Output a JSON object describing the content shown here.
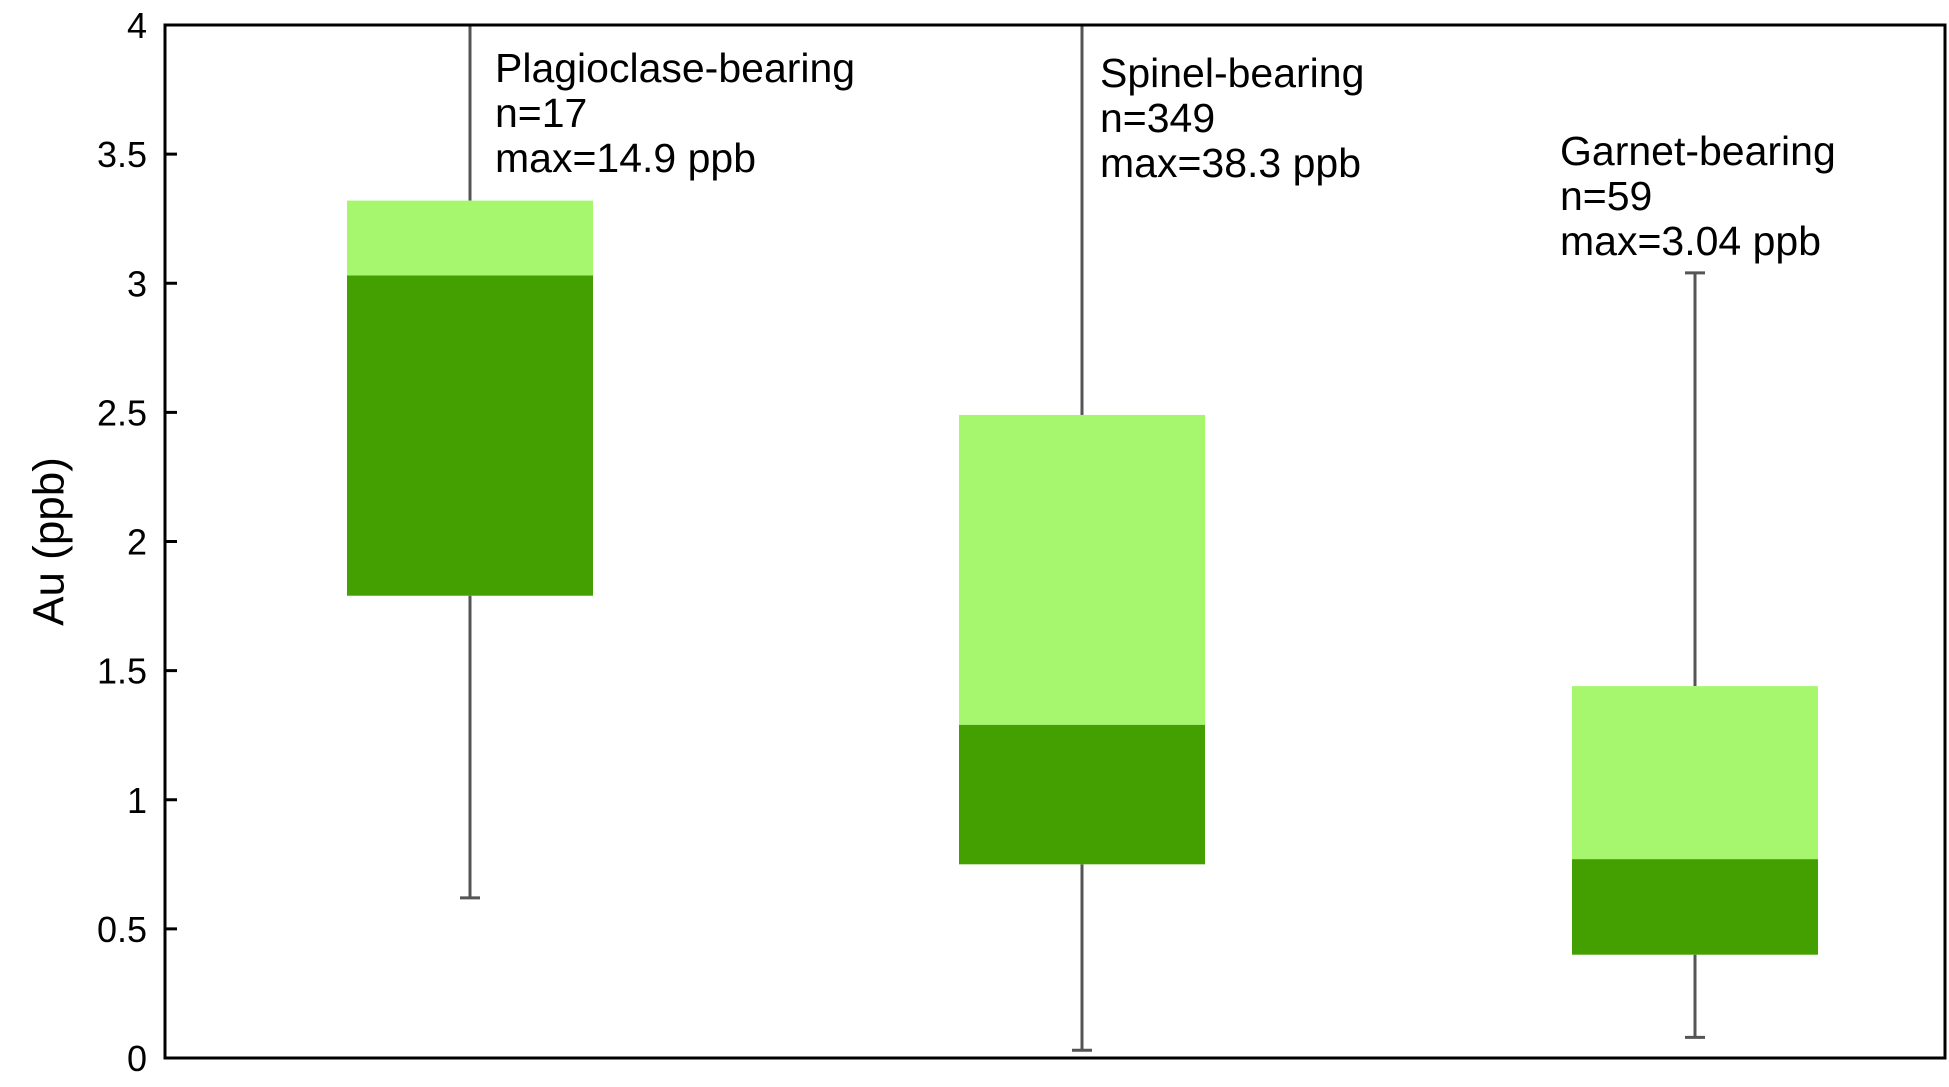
{
  "chart_data": {
    "type": "box",
    "ylabel": "Au (ppb)",
    "xlabel": "",
    "ylim": [
      0,
      4
    ],
    "yticks": [
      0,
      0.5,
      1,
      1.5,
      2,
      2.5,
      3,
      3.5,
      4
    ],
    "ytick_labels": [
      "0",
      "0.5",
      "1",
      "1.5",
      "2",
      "2.5",
      "3",
      "3.5",
      "4"
    ],
    "grid": false,
    "colors": {
      "upper_box": "#a6f76e",
      "lower_box": "#43a000",
      "whisker": "#555555",
      "axis": "#000000"
    },
    "series": [
      {
        "label": "Plagioclase-bearing",
        "n_text": "n=17",
        "max_text": "max=14.9 ppb",
        "min": 0.62,
        "q1": 1.79,
        "median": 3.03,
        "q3": 3.32,
        "max": 14.9
      },
      {
        "label": "Spinel-bearing",
        "n_text": "n=349",
        "max_text": "max=38.3 ppb",
        "min": 0.03,
        "q1": 0.75,
        "median": 1.29,
        "q3": 2.49,
        "max": 38.3
      },
      {
        "label": "Garnet-bearing",
        "n_text": "n=59",
        "max_text": "max=3.04 ppb",
        "min": 0.08,
        "q1": 0.4,
        "median": 0.77,
        "q3": 1.44,
        "max": 3.04
      }
    ]
  }
}
